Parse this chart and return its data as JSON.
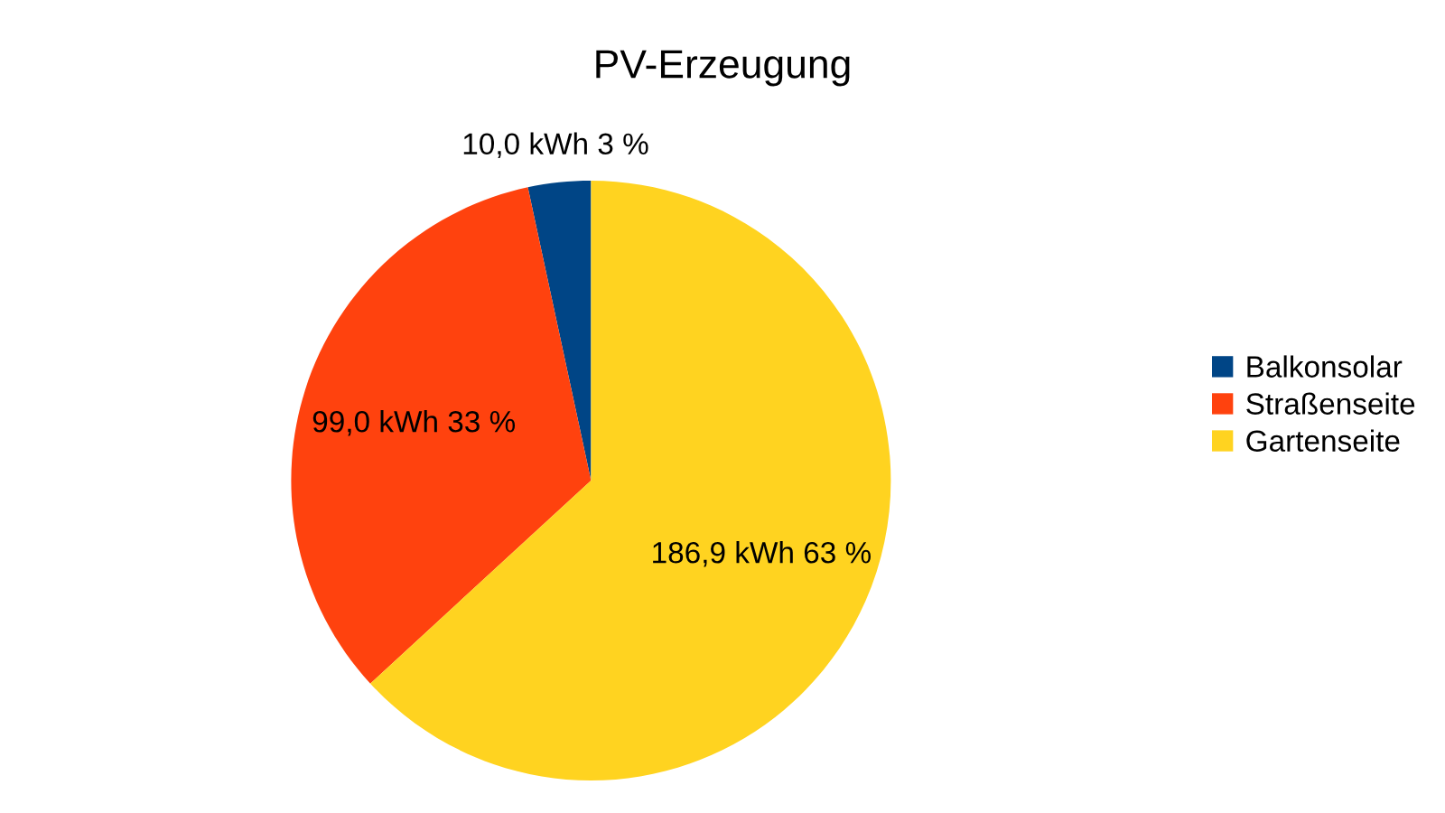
{
  "chart_data": {
    "type": "pie",
    "title": "PV-Erzeugung",
    "categories": [
      "Balkonsolar",
      "Straßenseite",
      "Gartenseite"
    ],
    "values": [
      10.0,
      99.0,
      186.9
    ],
    "colors": [
      "#004586",
      "#ff420e",
      "#ffd320"
    ],
    "value_labels": [
      "10,0 kWh 3 %",
      "99,0 kWh 33 %",
      "186,9 kWh 63 %"
    ],
    "legend": "right"
  }
}
